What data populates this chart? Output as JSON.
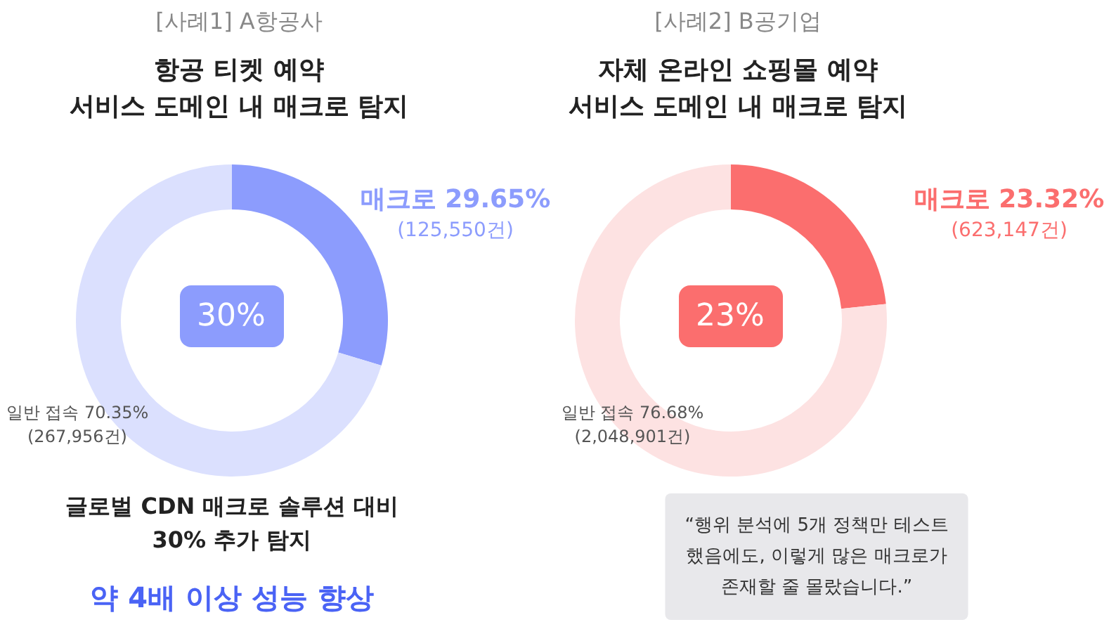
{
  "chart_data": [
    {
      "type": "donut",
      "title": "[사례1] A항공사",
      "subtitle": "항공 티켓 예약\n서비스 도메인 내 매크로 탐지",
      "categories": [
        "매크로",
        "일반 접속"
      ],
      "values": [
        29.65,
        70.35
      ],
      "colors": [
        "#8c9cfd",
        "#dbe0fe"
      ],
      "value_labels": [
        "29.65%\n(125,550건)",
        "70.35%\n(267,956건)"
      ],
      "annotations": [
        "30%",
        "글로벌 CDN 매크로 솔루션 대비\n30% 추가 탐지",
        "약 4배 이상 성능 향상"
      ]
    },
    {
      "type": "donut",
      "title": "[사례2] B공기업",
      "subtitle": "자체 온라인 쇼핑몰 예약\n서비스 도메인 내 매크로 탐지",
      "categories": [
        "매크로",
        "일반 접속"
      ],
      "values": [
        23.32,
        76.68
      ],
      "colors": [
        "#fb6e6e",
        "#fde2e2"
      ],
      "value_labels": [
        "23.32%\n(623,147건)",
        "76.68%\n(2,048,901건)"
      ],
      "annotations": [
        "23%",
        "“행위 분석에 5개 정책만 테스트\n했음에도, 이렇게 많은 매크로가\n존재할 줄 몰랐습니다.”"
      ]
    }
  ]
}
